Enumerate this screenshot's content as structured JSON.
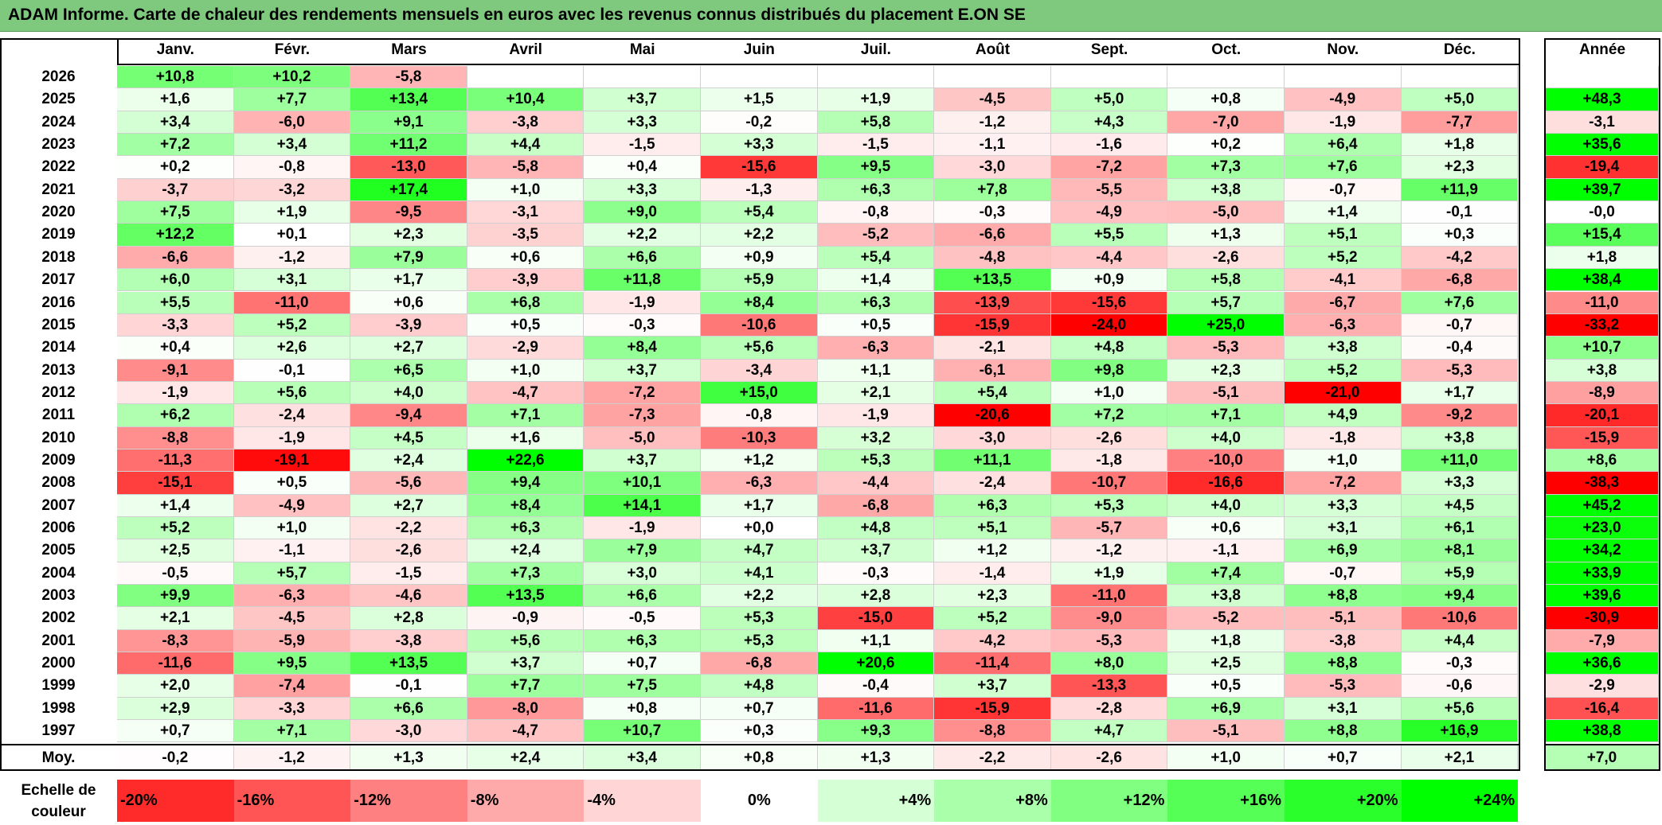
{
  "title": "ADAM Informe. Carte de chaleur des rendements mensuels en euros avec les revenus connus distribués du placement E.ON SE",
  "chart_data": {
    "type": "heatmap",
    "title": "ADAM Informe. Carte de chaleur des rendements mensuels en euros avec les revenus connus distribués du placement E.ON SE",
    "columns": [
      "Janv.",
      "Févr.",
      "Mars",
      "Avril",
      "Mai",
      "Juin",
      "Juil.",
      "Août",
      "Sept.",
      "Oct.",
      "Nov.",
      "Déc."
    ],
    "year_column_label": "Année",
    "average_row_label": "Moy.",
    "rows": [
      {
        "year": "2026",
        "months": [
          "+10,8",
          "+10,2",
          "-5,8",
          "",
          "",
          "",
          "",
          "",
          "",
          "",
          "",
          ""
        ],
        "annual": ""
      },
      {
        "year": "2025",
        "months": [
          "+1,6",
          "+7,7",
          "+13,4",
          "+10,4",
          "+3,7",
          "+1,5",
          "+1,9",
          "-4,5",
          "+5,0",
          "+0,8",
          "-4,9",
          "+5,0"
        ],
        "annual": "+48,3"
      },
      {
        "year": "2024",
        "months": [
          "+3,4",
          "-6,0",
          "+9,1",
          "-3,8",
          "+3,3",
          "-0,2",
          "+5,8",
          "-1,2",
          "+4,3",
          "-7,0",
          "-1,9",
          "-7,7"
        ],
        "annual": "-3,1"
      },
      {
        "year": "2023",
        "months": [
          "+7,2",
          "+3,4",
          "+11,2",
          "+4,4",
          "-1,5",
          "+3,3",
          "-1,5",
          "-1,1",
          "-1,6",
          "+0,2",
          "+6,4",
          "+1,8"
        ],
        "annual": "+35,6"
      },
      {
        "year": "2022",
        "months": [
          "+0,2",
          "-0,8",
          "-13,0",
          "-5,8",
          "+0,4",
          "-15,6",
          "+9,5",
          "-3,0",
          "-7,2",
          "+7,3",
          "+7,6",
          "+2,3"
        ],
        "annual": "-19,4"
      },
      {
        "year": "2021",
        "months": [
          "-3,7",
          "-3,2",
          "+17,4",
          "+1,0",
          "+3,3",
          "-1,3",
          "+6,3",
          "+7,8",
          "-5,5",
          "+3,8",
          "-0,7",
          "+11,9"
        ],
        "annual": "+39,7"
      },
      {
        "year": "2020",
        "months": [
          "+7,5",
          "+1,9",
          "-9,5",
          "-3,1",
          "+9,0",
          "+5,4",
          "-0,8",
          "-0,3",
          "-4,9",
          "-5,0",
          "+1,4",
          "-0,1"
        ],
        "annual": "-0,0"
      },
      {
        "year": "2019",
        "months": [
          "+12,2",
          "+0,1",
          "+2,3",
          "-3,5",
          "+2,2",
          "+2,2",
          "-5,2",
          "-6,6",
          "+5,5",
          "+1,3",
          "+5,1",
          "+0,3"
        ],
        "annual": "+15,4"
      },
      {
        "year": "2018",
        "months": [
          "-6,6",
          "-1,2",
          "+7,9",
          "+0,6",
          "+6,6",
          "+0,9",
          "+5,4",
          "-4,8",
          "-4,4",
          "-2,6",
          "+5,2",
          "-4,2"
        ],
        "annual": "+1,8"
      },
      {
        "year": "2017",
        "months": [
          "+6,0",
          "+3,1",
          "+1,7",
          "-3,9",
          "+11,8",
          "+5,9",
          "+1,4",
          "+13,5",
          "+0,9",
          "+5,8",
          "-4,1",
          "-6,8"
        ],
        "annual": "+38,4"
      },
      {
        "year": "2016",
        "months": [
          "+5,5",
          "-11,0",
          "+0,6",
          "+6,8",
          "-1,9",
          "+8,4",
          "+6,3",
          "-13,9",
          "-15,6",
          "+5,7",
          "-6,7",
          "+7,6"
        ],
        "annual": "-11,0"
      },
      {
        "year": "2015",
        "months": [
          "-3,3",
          "+5,2",
          "-3,9",
          "+0,5",
          "-0,3",
          "-10,6",
          "+0,5",
          "-15,9",
          "-24,0",
          "+25,0",
          "-6,3",
          "-0,7"
        ],
        "annual": "-33,2"
      },
      {
        "year": "2014",
        "months": [
          "+0,4",
          "+2,6",
          "+2,7",
          "-2,9",
          "+8,4",
          "+5,6",
          "-6,3",
          "-2,1",
          "+4,8",
          "-5,3",
          "+3,8",
          "-0,4"
        ],
        "annual": "+10,7"
      },
      {
        "year": "2013",
        "months": [
          "-9,1",
          "-0,1",
          "+6,5",
          "+1,0",
          "+3,7",
          "-3,4",
          "+1,1",
          "-6,1",
          "+9,8",
          "+2,3",
          "+5,2",
          "-5,3"
        ],
        "annual": "+3,8"
      },
      {
        "year": "2012",
        "months": [
          "-1,9",
          "+5,6",
          "+4,0",
          "-4,7",
          "-7,2",
          "+15,0",
          "+2,1",
          "+5,4",
          "+1,0",
          "-5,1",
          "-21,0",
          "+1,7"
        ],
        "annual": "-8,9"
      },
      {
        "year": "2011",
        "months": [
          "+6,2",
          "-2,4",
          "-9,4",
          "+7,1",
          "-7,3",
          "-0,8",
          "-1,9",
          "-20,6",
          "+7,2",
          "+7,1",
          "+4,9",
          "-9,2"
        ],
        "annual": "-20,1"
      },
      {
        "year": "2010",
        "months": [
          "-8,8",
          "-1,9",
          "+4,5",
          "+1,6",
          "-5,0",
          "-10,3",
          "+3,2",
          "-3,0",
          "-2,6",
          "+4,0",
          "-1,8",
          "+3,8"
        ],
        "annual": "-15,9"
      },
      {
        "year": "2009",
        "months": [
          "-11,3",
          "-19,1",
          "+2,4",
          "+22,6",
          "+3,7",
          "+1,2",
          "+5,3",
          "+11,1",
          "-1,8",
          "-10,0",
          "+1,0",
          "+11,0"
        ],
        "annual": "+8,6"
      },
      {
        "year": "2008",
        "months": [
          "-15,1",
          "+0,5",
          "-5,6",
          "+9,4",
          "+10,1",
          "-6,3",
          "-4,4",
          "-2,4",
          "-10,7",
          "-16,6",
          "-7,2",
          "+3,3"
        ],
        "annual": "-38,3"
      },
      {
        "year": "2007",
        "months": [
          "+1,4",
          "-4,9",
          "+2,7",
          "+8,4",
          "+14,1",
          "+1,7",
          "-6,8",
          "+6,3",
          "+5,3",
          "+4,0",
          "+3,3",
          "+4,5"
        ],
        "annual": "+45,2"
      },
      {
        "year": "2006",
        "months": [
          "+5,2",
          "+1,0",
          "-2,2",
          "+6,3",
          "-1,9",
          "+0,0",
          "+4,8",
          "+5,1",
          "-5,7",
          "+0,6",
          "+3,1",
          "+6,1"
        ],
        "annual": "+23,0"
      },
      {
        "year": "2005",
        "months": [
          "+2,5",
          "-1,1",
          "-2,6",
          "+2,4",
          "+7,9",
          "+4,7",
          "+3,7",
          "+1,2",
          "-1,2",
          "-1,1",
          "+6,9",
          "+8,1"
        ],
        "annual": "+34,2"
      },
      {
        "year": "2004",
        "months": [
          "-0,5",
          "+5,7",
          "-1,5",
          "+7,3",
          "+3,0",
          "+4,1",
          "-0,3",
          "-1,4",
          "+1,9",
          "+7,4",
          "-0,7",
          "+5,9"
        ],
        "annual": "+33,9"
      },
      {
        "year": "2003",
        "months": [
          "+9,9",
          "-6,3",
          "-4,6",
          "+13,5",
          "+6,6",
          "+2,2",
          "+2,8",
          "+2,3",
          "-11,0",
          "+3,8",
          "+8,8",
          "+9,4"
        ],
        "annual": "+39,6"
      },
      {
        "year": "2002",
        "months": [
          "+2,1",
          "-4,5",
          "+2,8",
          "-0,9",
          "-0,5",
          "+5,3",
          "-15,0",
          "+5,2",
          "-9,0",
          "-5,2",
          "-5,1",
          "-10,6"
        ],
        "annual": "-30,9"
      },
      {
        "year": "2001",
        "months": [
          "-8,3",
          "-5,9",
          "-3,8",
          "+5,6",
          "+6,3",
          "+5,3",
          "+1,1",
          "-4,2",
          "-5,3",
          "+1,8",
          "-3,8",
          "+4,4"
        ],
        "annual": "-7,9"
      },
      {
        "year": "2000",
        "months": [
          "-11,6",
          "+9,5",
          "+13,5",
          "+3,7",
          "+0,7",
          "-6,8",
          "+20,6",
          "-11,4",
          "+8,0",
          "+2,5",
          "+8,8",
          "-0,3"
        ],
        "annual": "+36,6"
      },
      {
        "year": "1999",
        "months": [
          "+2,0",
          "-7,4",
          "-0,1",
          "+7,7",
          "+7,5",
          "+4,8",
          "-0,4",
          "+3,7",
          "-13,3",
          "+0,5",
          "-5,3",
          "-0,6"
        ],
        "annual": "-2,9"
      },
      {
        "year": "1998",
        "months": [
          "+2,9",
          "-3,3",
          "+6,6",
          "-8,0",
          "+0,8",
          "+0,7",
          "-11,6",
          "-15,9",
          "-2,8",
          "+6,9",
          "+3,1",
          "+5,6"
        ],
        "annual": "-16,4"
      },
      {
        "year": "1997",
        "months": [
          "+0,7",
          "+7,1",
          "-3,0",
          "-4,7",
          "+10,7",
          "+0,3",
          "+9,3",
          "-8,8",
          "+4,7",
          "-5,1",
          "+8,8",
          "+16,9"
        ],
        "annual": "+38,8"
      }
    ],
    "average": {
      "months": [
        "-0,2",
        "-1,2",
        "+1,3",
        "+2,4",
        "+3,4",
        "+0,8",
        "+1,3",
        "-2,2",
        "-2,6",
        "+1,0",
        "+0,7",
        "+2,1"
      ],
      "annual": "+7,0"
    },
    "color_scale_label": "Echelle de couleur",
    "color_scale": [
      "-20%",
      "-16%",
      "-12%",
      "-8%",
      "-4%",
      "0%",
      "+4%",
      "+8%",
      "+12%",
      "+16%",
      "+20%",
      "+24%"
    ],
    "colors": {
      "negative": "#ff0000",
      "zero": "#ffffff",
      "positive": "#00ff00",
      "title_bar": "#7fc97f"
    }
  }
}
